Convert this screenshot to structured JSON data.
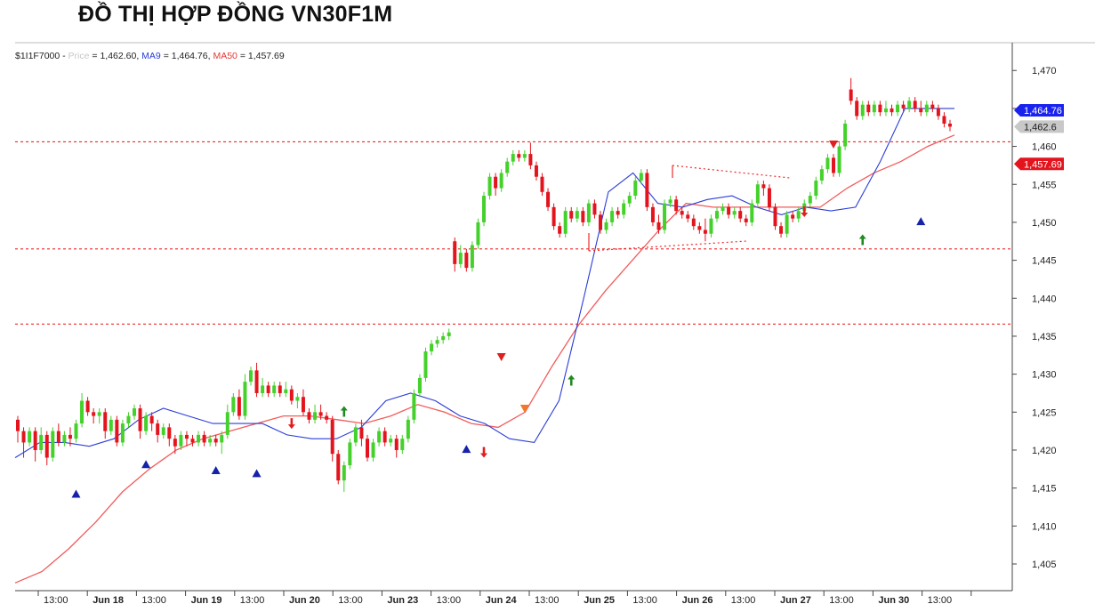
{
  "page_title": "ĐỒ THỊ HỢP ĐỒNG VN30F1M",
  "legend": {
    "symbol": "$1I1F7000 -",
    "price_name": "Price",
    "price_value": "= 1,462.60,",
    "ma9_name": "MA9",
    "ma9_value": "= 1,464.76,",
    "ma50_name": "MA50",
    "ma50_value": "= 1,457.69"
  },
  "price_tags": {
    "ma9": "1,464.76",
    "price": "1,462.6",
    "ma50": "1,457.69"
  },
  "colors": {
    "up_candle": "#44d12b",
    "down_candle": "#e3141d",
    "ma9_line": "#2a3dd6",
    "ma50_line": "#f25b5b",
    "level_line": "#ee2a2a",
    "signal_blue": "#1622a8",
    "signal_red": "#e01f1f",
    "signal_orange": "#f07a28",
    "signal_green": "#1f8a1f",
    "ma9_tag": "#1a23ee",
    "price_tag": "#c8c8c8",
    "ma50_tag": "#e3141d"
  },
  "chart_data": {
    "type": "candlestick",
    "title": "ĐỒ THỊ HỢP ĐỒNG VN30F1M",
    "y_axis_position": "right",
    "ylim": [
      1402,
      1472
    ],
    "y_ticks": [
      "1,405",
      "1,410",
      "1,415",
      "1,420",
      "1,425",
      "1,430",
      "1,435",
      "1,440",
      "1,445",
      "1,450",
      "1,455",
      "1,460",
      "1,465",
      "1,470"
    ],
    "x_ticks": [
      "13:00",
      "Jun 18",
      "13:00",
      "Jun 19",
      "13:00",
      "Jun 20",
      "13:00",
      "Jun 23",
      "13:00",
      "Jun 24",
      "13:00",
      "Jun 25",
      "13:00",
      "Jun 26",
      "13:00",
      "Jun 27",
      "13:00",
      "Jun 30",
      "13:00"
    ],
    "grid": false,
    "legend_position": "top-left",
    "series": [
      {
        "name": "Price",
        "type": "candlestick",
        "last": 1462.6
      },
      {
        "name": "MA9",
        "type": "line",
        "last": 1464.76
      },
      {
        "name": "MA50",
        "type": "line",
        "last": 1457.69
      }
    ],
    "ma9": [
      1419,
      1421,
      1421,
      1420.5,
      1421.5,
      1424,
      1425.5,
      1424.5,
      1423.5,
      1423.5,
      1423.5,
      1422,
      1421.5,
      1421.5,
      1423,
      1426.5,
      1427.5,
      1426.5,
      1424.5,
      1423.5,
      1421.5,
      1421,
      1426.5,
      1440,
      1454,
      1456.5,
      1452.5,
      1452,
      1453,
      1453.5,
      1452,
      1451,
      1452,
      1451.5,
      1452,
      1458,
      1465,
      1465,
      1465
    ],
    "ma50": [
      1402.5,
      1404,
      1407,
      1410.5,
      1414.5,
      1417.5,
      1420,
      1421.5,
      1422.5,
      1423.5,
      1424.5,
      1424.5,
      1424,
      1423.5,
      1424.5,
      1426,
      1425,
      1423.5,
      1423,
      1425,
      1431,
      1436.5,
      1441,
      1445,
      1449,
      1452.5,
      1452,
      1452,
      1452,
      1452,
      1452,
      1454.5,
      1456.5,
      1458,
      1460,
      1461.5
    ],
    "levels": [
      1460.6,
      1446.5,
      1436.6
    ],
    "candles": [
      [
        1424,
        1422.5,
        1421,
        1424.5
      ],
      [
        1422.5,
        1421,
        1419,
        1423
      ],
      [
        1421,
        1422.5,
        1420.5,
        1423
      ],
      [
        1422.5,
        1420,
        1418.5,
        1423
      ],
      [
        1420,
        1422,
        1419.5,
        1423
      ],
      [
        1422,
        1419,
        1418,
        1422.5
      ],
      [
        1419,
        1422.5,
        1418.5,
        1423
      ],
      [
        1422.5,
        1421,
        1420.5,
        1423.5
      ],
      [
        1421,
        1422,
        1420.5,
        1422.5
      ],
      [
        1422,
        1421.5,
        1420.5,
        1423
      ],
      [
        1421.5,
        1423.5,
        1421,
        1424
      ],
      [
        1423.5,
        1426.5,
        1423,
        1427.5
      ],
      [
        1426.5,
        1425,
        1424.5,
        1427
      ],
      [
        1425,
        1424.5,
        1423.5,
        1425.5
      ],
      [
        1424.5,
        1425,
        1423.5,
        1425.5
      ],
      [
        1425,
        1422.5,
        1421.5,
        1425.5
      ],
      [
        1422.5,
        1424,
        1422,
        1424.5
      ],
      [
        1424,
        1421,
        1420.5,
        1424.5
      ],
      [
        1421,
        1423.5,
        1420.5,
        1424
      ],
      [
        1423.5,
        1424.5,
        1423,
        1425
      ],
      [
        1424.5,
        1425.5,
        1424,
        1426
      ],
      [
        1425.5,
        1422.5,
        1421.5,
        1426
      ],
      [
        1422.5,
        1424.5,
        1422,
        1425
      ],
      [
        1424.5,
        1423.5,
        1422.5,
        1425
      ],
      [
        1423.5,
        1422,
        1421,
        1424
      ],
      [
        1422,
        1423,
        1421.5,
        1423.5
      ],
      [
        1423,
        1421.5,
        1420.5,
        1423.5
      ],
      [
        1421.5,
        1420.5,
        1419.5,
        1422
      ],
      [
        1420.5,
        1422,
        1420,
        1422.5
      ],
      [
        1422,
        1421.5,
        1420.5,
        1422.5
      ],
      [
        1421.5,
        1421,
        1420.5,
        1422
      ],
      [
        1421,
        1422,
        1420.5,
        1422.5
      ],
      [
        1422,
        1421,
        1420.5,
        1422.5
      ],
      [
        1421,
        1421.5,
        1420.5,
        1422
      ],
      [
        1421.5,
        1421,
        1420.5,
        1422
      ],
      [
        1421,
        1422,
        1419.5,
        1422.5
      ],
      [
        1422,
        1425,
        1421.5,
        1426
      ],
      [
        1425,
        1427,
        1424.5,
        1427.5
      ],
      [
        1427,
        1424.5,
        1424,
        1428
      ],
      [
        1424.5,
        1429,
        1424,
        1430
      ],
      [
        1429,
        1430.5,
        1428.5,
        1431
      ],
      [
        1430.5,
        1427.5,
        1427,
        1431.5
      ],
      [
        1427.5,
        1428.5,
        1427,
        1429.5
      ],
      [
        1428.5,
        1427.5,
        1427,
        1429
      ],
      [
        1427.5,
        1428.5,
        1427,
        1429
      ],
      [
        1428.5,
        1427.5,
        1427,
        1429
      ],
      [
        1427.5,
        1428,
        1427,
        1429
      ],
      [
        1428,
        1426.5,
        1426,
        1428.5
      ],
      [
        1426.5,
        1427,
        1425.5,
        1427.5
      ],
      [
        1427,
        1425,
        1424.5,
        1428
      ],
      [
        1425,
        1424,
        1423.5,
        1425.5
      ],
      [
        1424,
        1425,
        1423.5,
        1426
      ],
      [
        1425,
        1424.5,
        1424,
        1426
      ],
      [
        1424.5,
        1424,
        1423.5,
        1425
      ],
      [
        1424,
        1419.5,
        1418.5,
        1424.5
      ],
      [
        1419.5,
        1416,
        1415.5,
        1420
      ],
      [
        1416,
        1418,
        1414.5,
        1418.5
      ],
      [
        1418,
        1421,
        1417.5,
        1421.5
      ],
      [
        1421,
        1423,
        1420.5,
        1423.5
      ],
      [
        1423,
        1421.5,
        1420.5,
        1424
      ],
      [
        1421.5,
        1419,
        1418.5,
        1422
      ],
      [
        1419,
        1421,
        1418.5,
        1421.5
      ],
      [
        1421,
        1422.5,
        1420.5,
        1423
      ],
      [
        1422.5,
        1421,
        1420.5,
        1423
      ],
      [
        1421,
        1421.5,
        1420.5,
        1422
      ],
      [
        1421.5,
        1420,
        1419,
        1422
      ],
      [
        1420,
        1421.5,
        1419.5,
        1422
      ],
      [
        1421.5,
        1424,
        1421,
        1424.5
      ],
      [
        1424,
        1427.5,
        1423.5,
        1428
      ],
      [
        1427.5,
        1429.5,
        1427,
        1430
      ],
      [
        1429.5,
        1433,
        1429,
        1433.5
      ],
      [
        1433,
        1434,
        1432.5,
        1434.5
      ],
      [
        1434,
        1434.5,
        1433.5,
        1435
      ],
      [
        1434.5,
        1435,
        1434,
        1435.5
      ],
      [
        1435,
        1435.5,
        1434.5,
        1436
      ],
      [
        1447.5,
        1444.5,
        1443.5,
        1448
      ],
      [
        1444.5,
        1446,
        1444,
        1447
      ],
      [
        1446,
        1444,
        1443.5,
        1446.5
      ],
      [
        1444,
        1447,
        1443.5,
        1447.5
      ],
      [
        1447,
        1450,
        1446.5,
        1450.5
      ],
      [
        1450,
        1453.5,
        1449.5,
        1454
      ],
      [
        1453.5,
        1456,
        1453,
        1456.5
      ],
      [
        1456,
        1454.5,
        1453.5,
        1456.5
      ],
      [
        1454.5,
        1456.5,
        1454,
        1457
      ],
      [
        1456.5,
        1458,
        1456,
        1458.5
      ],
      [
        1458,
        1459,
        1457.5,
        1459.5
      ],
      [
        1459,
        1458.5,
        1458,
        1459.5
      ],
      [
        1458.5,
        1459,
        1458,
        1459.5
      ],
      [
        1459,
        1457.5,
        1457,
        1460.5
      ],
      [
        1457.5,
        1456,
        1455.5,
        1458
      ],
      [
        1456,
        1454,
        1453.5,
        1456.5
      ],
      [
        1454,
        1452,
        1451.5,
        1454.5
      ],
      [
        1452,
        1449.5,
        1449,
        1452.5
      ],
      [
        1449.5,
        1448.5,
        1448,
        1450
      ],
      [
        1448.5,
        1451.5,
        1448,
        1452
      ],
      [
        1451.5,
        1450.5,
        1450,
        1452
      ],
      [
        1450.5,
        1451.5,
        1450,
        1452
      ],
      [
        1451.5,
        1450,
        1449.5,
        1452
      ],
      [
        1450,
        1452.5,
        1449.5,
        1453
      ],
      [
        1452.5,
        1451,
        1450.5,
        1453
      ],
      [
        1451,
        1449,
        1448.5,
        1451.5
      ],
      [
        1449,
        1450,
        1448.5,
        1450.5
      ],
      [
        1450,
        1451.5,
        1449.5,
        1452
      ],
      [
        1451.5,
        1451,
        1450.5,
        1452
      ],
      [
        1451,
        1452.5,
        1450.5,
        1453
      ],
      [
        1452.5,
        1453.5,
        1452,
        1454
      ],
      [
        1453.5,
        1455.5,
        1453,
        1456
      ],
      [
        1455.5,
        1456.5,
        1455,
        1457
      ],
      [
        1456.5,
        1452,
        1451.5,
        1457
      ],
      [
        1452,
        1450,
        1449.5,
        1452.5
      ],
      [
        1450,
        1449,
        1448.5,
        1451
      ],
      [
        1449,
        1452.5,
        1448.5,
        1453
      ],
      [
        1452.5,
        1453,
        1452,
        1453.5
      ],
      [
        1453,
        1451.5,
        1451,
        1453.5
      ],
      [
        1451.5,
        1451,
        1450.5,
        1452
      ],
      [
        1451,
        1450.5,
        1450,
        1451.5
      ],
      [
        1450.5,
        1449.5,
        1449,
        1451
      ],
      [
        1449.5,
        1449,
        1448.5,
        1450
      ],
      [
        1449,
        1448.5,
        1447.5,
        1450.5
      ],
      [
        1448.5,
        1450.5,
        1448,
        1451
      ],
      [
        1450.5,
        1451.5,
        1450,
        1452
      ],
      [
        1451.5,
        1452,
        1451,
        1452.5
      ],
      [
        1452,
        1451,
        1450.5,
        1452.5
      ],
      [
        1451,
        1451.5,
        1450.5,
        1452
      ],
      [
        1451.5,
        1450.5,
        1450,
        1452
      ],
      [
        1450.5,
        1450,
        1449.5,
        1451
      ],
      [
        1450,
        1452.5,
        1449.5,
        1453
      ],
      [
        1452.5,
        1455,
        1452,
        1455.5
      ],
      [
        1455,
        1454.5,
        1453.5,
        1455.5
      ],
      [
        1454.5,
        1452,
        1451.5,
        1455
      ],
      [
        1452,
        1449.5,
        1449,
        1452.5
      ],
      [
        1449.5,
        1448.5,
        1448,
        1450
      ],
      [
        1448.5,
        1451,
        1448,
        1451.5
      ],
      [
        1451,
        1450.5,
        1450,
        1451.5
      ],
      [
        1450.5,
        1451.5,
        1450,
        1452
      ],
      [
        1451.5,
        1452.5,
        1451,
        1453
      ],
      [
        1452.5,
        1453.5,
        1452,
        1454
      ],
      [
        1453.5,
        1455.5,
        1453,
        1456
      ],
      [
        1455.5,
        1457,
        1455,
        1457.5
      ],
      [
        1457,
        1458.5,
        1456.5,
        1459
      ],
      [
        1458.5,
        1456.5,
        1456,
        1459
      ],
      [
        1456.5,
        1460,
        1456,
        1460.5
      ],
      [
        1460,
        1463,
        1459.5,
        1463.5
      ],
      [
        1467.5,
        1466,
        1465.5,
        1469
      ],
      [
        1466,
        1464,
        1463.5,
        1466.5
      ],
      [
        1464,
        1465.5,
        1463.5,
        1466
      ],
      [
        1465.5,
        1464.5,
        1464,
        1466
      ],
      [
        1464.5,
        1465.5,
        1464,
        1466
      ],
      [
        1465.5,
        1464.5,
        1464,
        1466
      ],
      [
        1464.5,
        1465,
        1464,
        1466
      ],
      [
        1465,
        1464.5,
        1464,
        1465.5
      ],
      [
        1464.5,
        1465.5,
        1464,
        1466
      ],
      [
        1465.5,
        1465,
        1464.5,
        1466
      ],
      [
        1465,
        1466,
        1464.5,
        1466.5
      ],
      [
        1466,
        1465,
        1464.5,
        1466.5
      ],
      [
        1465,
        1464.5,
        1464,
        1466
      ],
      [
        1464.5,
        1465.5,
        1464,
        1466
      ],
      [
        1465.5,
        1465,
        1464.5,
        1466
      ],
      [
        1465,
        1464,
        1463.5,
        1465.5
      ],
      [
        1464,
        1463,
        1462.5,
        1464.5
      ],
      [
        1463,
        1462.6,
        1462,
        1463.5
      ]
    ],
    "signals": [
      {
        "shape": "tri-up",
        "color": "blue",
        "index": 10,
        "price": 1414.2
      },
      {
        "shape": "tri-up",
        "color": "blue",
        "index": 22,
        "price": 1418.1
      },
      {
        "shape": "tri-up",
        "color": "blue",
        "index": 34,
        "price": 1417.3
      },
      {
        "shape": "tri-up",
        "color": "blue",
        "index": 41,
        "price": 1416.9
      },
      {
        "shape": "arrow-down",
        "color": "red",
        "index": 47,
        "price": 1423.5
      },
      {
        "shape": "arrow-up",
        "color": "green",
        "index": 56,
        "price": 1425.1
      },
      {
        "shape": "tri-up",
        "color": "blue",
        "index": 77,
        "price": 1420.1
      },
      {
        "shape": "arrow-down",
        "color": "red",
        "index": 80,
        "price": 1419.7
      },
      {
        "shape": "tri-down",
        "color": "red",
        "index": 83,
        "price": 1432.3
      },
      {
        "shape": "tri-down",
        "color": "orange",
        "index": 87,
        "price": 1425.5
      },
      {
        "shape": "arrow-up",
        "color": "green",
        "index": 95,
        "price": 1429.2
      },
      {
        "shape": "arrow-down",
        "color": "red",
        "index": 135,
        "price": 1451.4
      },
      {
        "shape": "tri-down",
        "color": "red",
        "index": 140,
        "price": 1460.3
      },
      {
        "shape": "arrow-up",
        "color": "green",
        "index": 145,
        "price": 1447.7
      },
      {
        "shape": "tri-up",
        "color": "blue",
        "index": 155,
        "price": 1450.1
      }
    ]
  }
}
